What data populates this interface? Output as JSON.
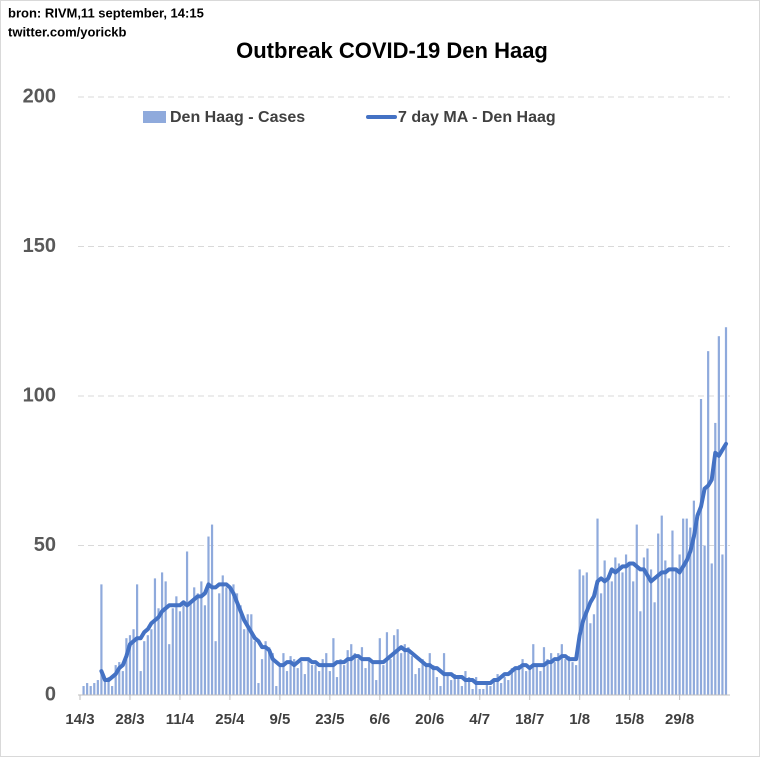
{
  "chart_data": {
    "type": "bar_line",
    "source": "bron: RIVM,11 september, 14:15",
    "credit": "twitter.com/yorickb",
    "title": "Outbreak COVID-19 Den Haag",
    "categories": [
      "14/3",
      null,
      null,
      null,
      null,
      null,
      null,
      null,
      null,
      null,
      null,
      null,
      null,
      null,
      "28/3",
      null,
      null,
      null,
      null,
      null,
      null,
      null,
      null,
      null,
      null,
      null,
      null,
      null,
      "11/4",
      null,
      null,
      null,
      null,
      null,
      null,
      null,
      null,
      null,
      null,
      null,
      null,
      null,
      "25/4",
      null,
      null,
      null,
      null,
      null,
      null,
      null,
      null,
      null,
      null,
      null,
      null,
      null,
      "9/5",
      null,
      null,
      null,
      null,
      null,
      null,
      null,
      null,
      null,
      null,
      null,
      null,
      null,
      "23/5",
      null,
      null,
      null,
      null,
      null,
      null,
      null,
      null,
      null,
      null,
      null,
      null,
      null,
      "6/6",
      null,
      null,
      null,
      null,
      null,
      null,
      null,
      null,
      null,
      null,
      null,
      null,
      null,
      "20/6",
      null,
      null,
      null,
      null,
      null,
      null,
      null,
      null,
      null,
      null,
      null,
      null,
      null,
      "4/7",
      null,
      null,
      null,
      null,
      null,
      null,
      null,
      null,
      null,
      null,
      null,
      null,
      null,
      "18/7",
      null,
      null,
      null,
      null,
      null,
      null,
      null,
      null,
      null,
      null,
      null,
      null,
      null,
      "1/8",
      null,
      null,
      null,
      null,
      null,
      null,
      null,
      null,
      null,
      null,
      null,
      null,
      null,
      "15/8",
      null,
      null,
      null,
      null,
      null,
      null,
      null,
      null,
      null,
      null,
      null,
      null,
      null,
      "29/8",
      null,
      null,
      null,
      null,
      null,
      null,
      null,
      null,
      null,
      null,
      null,
      null,
      null
    ],
    "series": [
      {
        "name": "Den Haag - Cases",
        "kind": "bar",
        "color": "#8faadc",
        "values": [
          0,
          3,
          4,
          3,
          4,
          5,
          37,
          5,
          6,
          3,
          10,
          11,
          8,
          19,
          20,
          22,
          37,
          8,
          18,
          20,
          22,
          39,
          29,
          41,
          38,
          17,
          29,
          33,
          28,
          30,
          48,
          31,
          36,
          34,
          38,
          30,
          53,
          57,
          18,
          34,
          40,
          36,
          36,
          37,
          34,
          30,
          22,
          27,
          27,
          18,
          4,
          12,
          18,
          16,
          14,
          3,
          10,
          14,
          8,
          13,
          12,
          9,
          11,
          7,
          12,
          10,
          10,
          8,
          12,
          14,
          8,
          19,
          6,
          12,
          10,
          15,
          17,
          14,
          12,
          16,
          9,
          12,
          11,
          5,
          19,
          10,
          21,
          12,
          20,
          22,
          14,
          17,
          16,
          13,
          7,
          9,
          12,
          10,
          14,
          10,
          6,
          3,
          14,
          7,
          5,
          7,
          6,
          3,
          8,
          6,
          2,
          6,
          2,
          2,
          4,
          3,
          5,
          7,
          4,
          6,
          5,
          9,
          9,
          10,
          12,
          8,
          9,
          17,
          10,
          8,
          16,
          12,
          14,
          11,
          14,
          17,
          12,
          13,
          11,
          10,
          42,
          40,
          41,
          24,
          27,
          59,
          34,
          45,
          40,
          38,
          46,
          44,
          41,
          47,
          44,
          38,
          57,
          28,
          46,
          49,
          42,
          31,
          54,
          60,
          45,
          39,
          55,
          42,
          47,
          59,
          59,
          56,
          65,
          61,
          99,
          50,
          115,
          44,
          91,
          120,
          47,
          123
        ]
      },
      {
        "name": "7 day MA - Den Haag",
        "kind": "line",
        "color": "#4472c4",
        "values": [
          null,
          null,
          null,
          null,
          null,
          null,
          8,
          5,
          5,
          6,
          7,
          9,
          10,
          13,
          17,
          18,
          19,
          19,
          21,
          22,
          24,
          25,
          26,
          28,
          29,
          30,
          30,
          30,
          30,
          31,
          30,
          31,
          32,
          33,
          33,
          34,
          37,
          36,
          36,
          37,
          37,
          37,
          36,
          34,
          31,
          28,
          25,
          23,
          21,
          19,
          18,
          16,
          16,
          15,
          12,
          11,
          10,
          10,
          11,
          11,
          10,
          11,
          12,
          12,
          12,
          11,
          11,
          10,
          10,
          10,
          10,
          10,
          11,
          11,
          11,
          12,
          12,
          13,
          13,
          12,
          12,
          12,
          11,
          11,
          11,
          11,
          12,
          13,
          14,
          15,
          16,
          15,
          15,
          14,
          13,
          12,
          11,
          10,
          10,
          9,
          9,
          8,
          7,
          7,
          7,
          6,
          6,
          6,
          5,
          5,
          5,
          4,
          4,
          4,
          4,
          4,
          5,
          5,
          6,
          7,
          7,
          8,
          9,
          9,
          10,
          10,
          9,
          10,
          10,
          10,
          10,
          11,
          11,
          12,
          12,
          13,
          13,
          12,
          12,
          12,
          20,
          25,
          28,
          31,
          33,
          38,
          39,
          38,
          39,
          42,
          41,
          42,
          43,
          43,
          44,
          44,
          43,
          42,
          42,
          40,
          38,
          39,
          40,
          41,
          41,
          42,
          42,
          42,
          41,
          43,
          45,
          48,
          53,
          60,
          63,
          69,
          70,
          72,
          81,
          80,
          82,
          84
        ]
      }
    ],
    "ylim": [
      0,
      200
    ],
    "yticks": [
      0,
      50,
      100,
      150,
      200
    ],
    "grid": true
  }
}
